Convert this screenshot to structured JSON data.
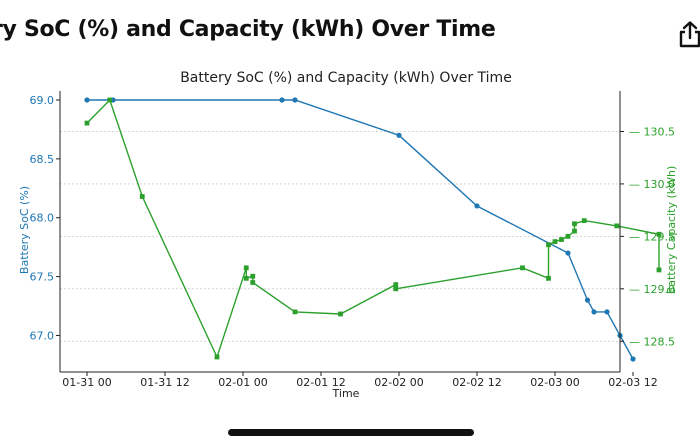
{
  "header": {
    "title": "ry SoC (%) and Capacity (kWh) Over Time",
    "share_icon": "share-icon"
  },
  "colors": {
    "soc": "#1f77b4",
    "capacity": "#2ca02c",
    "axis": "#222222",
    "grid": "#cccccc"
  },
  "chart_data": {
    "type": "line",
    "title": "Battery SoC (%) and Capacity (kWh) Over Time",
    "xlabel": "Time",
    "ylabel_left": "Battery SoC (%)",
    "ylabel_right": "Battery Capacity (kWh)",
    "x_ticks": [
      "01-31 00",
      "01-31 12",
      "02-01 00",
      "02-01 12",
      "02-02 00",
      "02-02 12",
      "02-03 00",
      "02-03 12"
    ],
    "y_left_ticks": [
      "69.0",
      "68.5",
      "68.0",
      "67.5",
      "67.0"
    ],
    "y_right_ticks": [
      "130.5",
      "130.0",
      "129.5",
      "129.0",
      "128.5"
    ],
    "y_left_range": [
      66.82,
      69.0
    ],
    "y_right_range": [
      128.35,
      130.8
    ],
    "grid": "right axis, horizontal dotted",
    "series": [
      {
        "name": "Battery SoC (%)",
        "axis": "left",
        "points": [
          {
            "x": "01-31 00:00",
            "y": 69.0
          },
          {
            "x": "01-31 04:00",
            "y": 69.0
          },
          {
            "x": "02-01 06:00",
            "y": 69.0
          },
          {
            "x": "02-01 08:00",
            "y": 69.0
          },
          {
            "x": "02-02 00:00",
            "y": 68.7
          },
          {
            "x": "02-02 12:00",
            "y": 68.1
          },
          {
            "x": "02-03 02:00",
            "y": 67.7
          },
          {
            "x": "02-03 05:00",
            "y": 67.3
          },
          {
            "x": "02-03 06:00",
            "y": 67.2
          },
          {
            "x": "02-03 08:00",
            "y": 67.2
          },
          {
            "x": "02-03 10:00",
            "y": 67.0
          },
          {
            "x": "02-03 12:00",
            "y": 66.8
          }
        ]
      },
      {
        "name": "Battery Capacity (kWh)",
        "axis": "right",
        "points": [
          {
            "x": "01-31 00:00",
            "y": 130.58
          },
          {
            "x": "01-31 03:30",
            "y": 130.8
          },
          {
            "x": "01-31 08:30",
            "y": 129.88
          },
          {
            "x": "01-31 20:00",
            "y": 128.35
          },
          {
            "x": "02-01 00:30",
            "y": 129.2
          },
          {
            "x": "02-01 00:30",
            "y": 129.1
          },
          {
            "x": "02-01 01:30",
            "y": 129.12
          },
          {
            "x": "02-01 01:30",
            "y": 129.06
          },
          {
            "x": "02-01 08:00",
            "y": 128.78
          },
          {
            "x": "02-01 15:00",
            "y": 128.76
          },
          {
            "x": "02-01 23:30",
            "y": 129.04
          },
          {
            "x": "02-01 23:30",
            "y": 129.0
          },
          {
            "x": "02-02 19:00",
            "y": 129.2
          },
          {
            "x": "02-02 23:00",
            "y": 129.1
          },
          {
            "x": "02-02 23:00",
            "y": 129.42
          },
          {
            "x": "02-03 00:00",
            "y": 129.45
          },
          {
            "x": "02-03 01:00",
            "y": 129.47
          },
          {
            "x": "02-03 02:00",
            "y": 129.5
          },
          {
            "x": "02-03 03:00",
            "y": 129.55
          },
          {
            "x": "02-03 03:00",
            "y": 129.62
          },
          {
            "x": "02-03 04:30",
            "y": 129.65
          },
          {
            "x": "02-03 09:30",
            "y": 129.6
          },
          {
            "x": "02-03 16:00",
            "y": 129.52
          },
          {
            "x": "02-03 16:00",
            "y": 129.18
          }
        ]
      }
    ]
  }
}
